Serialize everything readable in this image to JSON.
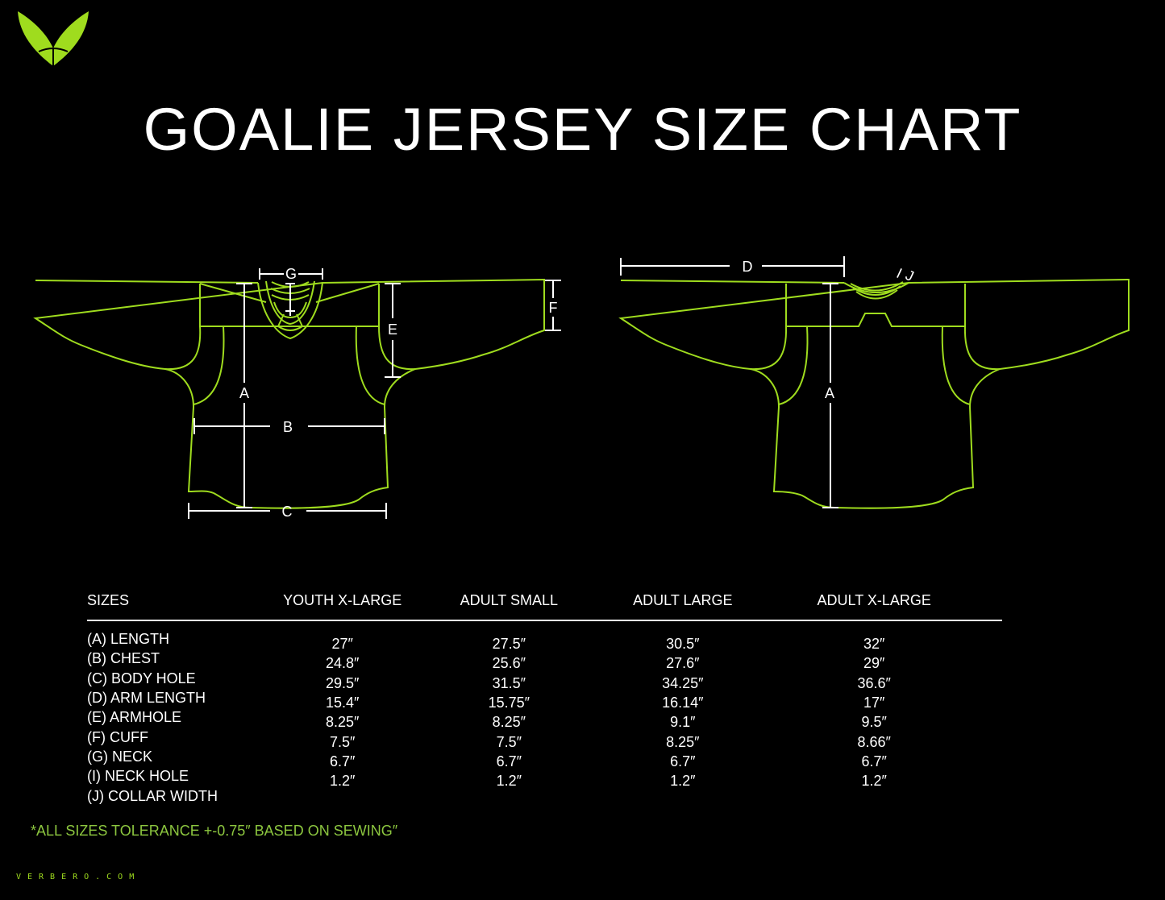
{
  "brand": {
    "logo": "verbero-v-logo",
    "site": "VERBERO.COM",
    "accent_color": "#9fdc1e"
  },
  "title": "GOALIE JERSEY SIZE CHART",
  "diagram": {
    "front_labels": {
      "a": "A",
      "b": "B",
      "c": "C",
      "e": "E",
      "f": "F",
      "g": "G"
    },
    "back_labels": {
      "a": "A",
      "d": "D",
      "i": "I",
      "j": "J"
    }
  },
  "table": {
    "headers": [
      "SIZES",
      "YOUTH X-LARGE",
      "ADULT SMALL",
      "ADULT LARGE",
      "ADULT X-LARGE"
    ],
    "rows": [
      [
        "(A) LENGTH",
        "27″",
        "27.5″",
        "30.5″",
        "32″"
      ],
      [
        "(B) CHEST",
        "24.8″",
        "25.6″",
        "27.6″",
        "29″"
      ],
      [
        "(C) BODY HOLE",
        "29.5″",
        "31.5″",
        "34.25″",
        "36.6″"
      ],
      [
        "(D) ARM LENGTH",
        "15.4″",
        "15.75″",
        "16.14″",
        "17″"
      ],
      [
        "(E) ARMHOLE",
        "8.25″",
        "8.25″",
        "9.1″",
        "9.5″"
      ],
      [
        "(F) CUFF",
        "7.5″",
        "7.5″",
        "8.25″",
        "8.66″"
      ],
      [
        "(G) NECK",
        "6.7″",
        "6.7″",
        "6.7″",
        "6.7″"
      ],
      [
        "(I) NECK HOLE",
        "1.2″",
        "1.2″",
        "1.2″",
        "1.2″"
      ],
      [
        "(J) COLLAR WIDTH",
        "",
        "",
        "",
        ""
      ]
    ]
  },
  "note": "*ALL SIZES TOLERANCE +-0.75″ BASED ON SEWING″"
}
